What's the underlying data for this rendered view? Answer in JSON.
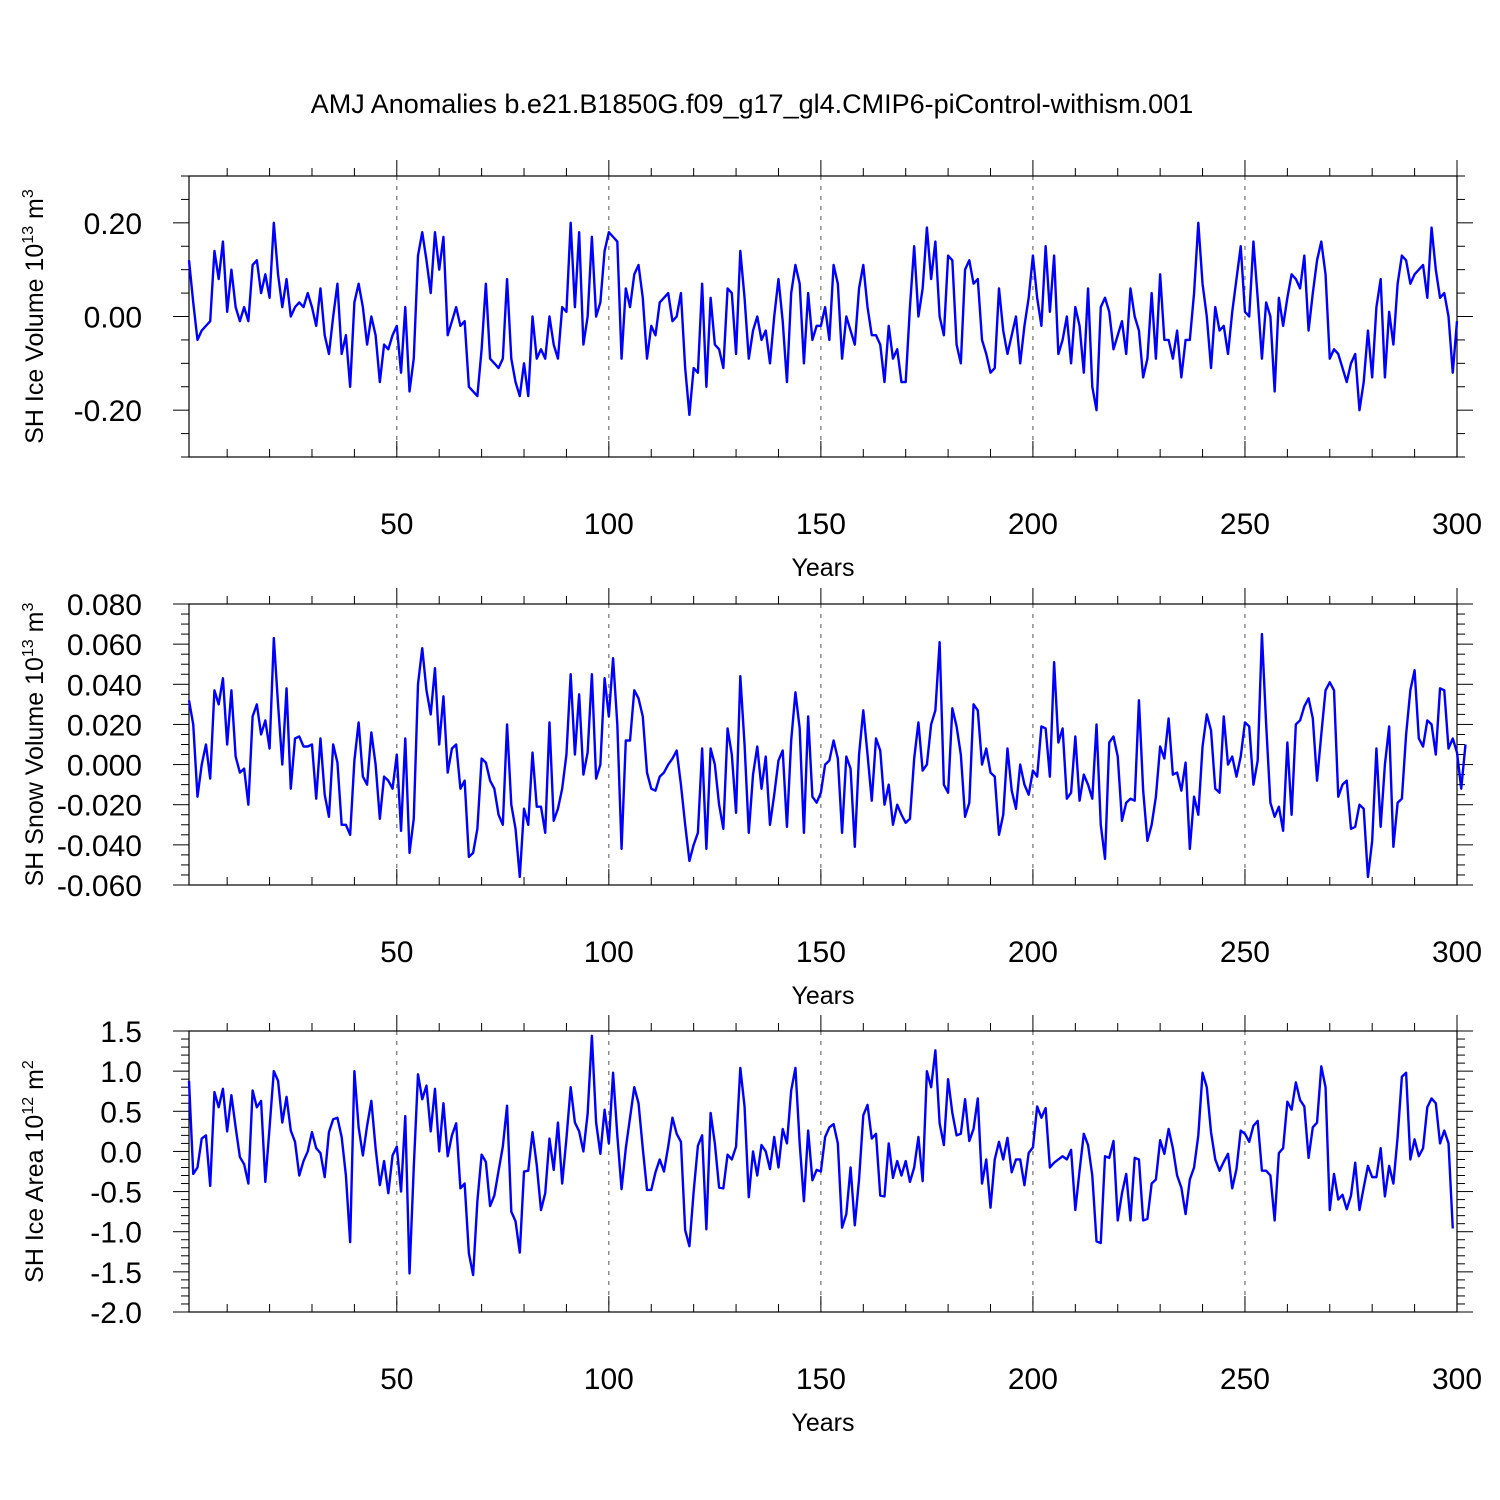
{
  "title": "AMJ Anomalies b.e21.B1850G.f09_g17_gl4.CMIP6-piControl-withism.001",
  "colors": {
    "line": "#0000ff",
    "frame": "#000000",
    "grid": "#555555"
  },
  "chart_data": [
    {
      "type": "line",
      "ylabel": "SH Ice Volume 10",
      "ylabel_exponent": "13",
      "ylabel_unit": " m",
      "ylabel_unit_exponent": "3",
      "xlabel": "Years",
      "xlim": [
        1,
        300
      ],
      "ylim": [
        -0.3,
        0.3
      ],
      "yticks": [
        -0.2,
        0.0,
        0.2
      ],
      "ytick_labels": [
        "-0.20",
        "0.00",
        "0.20"
      ],
      "yminor_step": 0.05,
      "xticks": [
        50,
        100,
        150,
        200,
        250,
        300
      ],
      "xtick_labels": [
        "50",
        "100",
        "150",
        "200",
        "250",
        "300"
      ],
      "xminor_step": 10,
      "grid_x": [
        50,
        100,
        150,
        200,
        250
      ],
      "x_start": 1,
      "series": [
        {
          "values": [
            0.12,
            0.03,
            -0.05,
            -0.03,
            -0.02,
            -0.01,
            0.14,
            0.08,
            0.16,
            0.01,
            0.1,
            0.02,
            -0.01,
            0.02,
            -0.01,
            0.11,
            0.12,
            0.05,
            0.09,
            0.04,
            0.2,
            0.09,
            0.02,
            0.08,
            0.0,
            0.02,
            0.03,
            0.02,
            0.05,
            0.02,
            -0.02,
            0.06,
            -0.04,
            -0.08,
            0.0,
            0.07,
            -0.08,
            -0.04,
            -0.15,
            0.03,
            0.07,
            0.02,
            -0.06,
            0.0,
            -0.04,
            -0.14,
            -0.06,
            -0.07,
            -0.04,
            -0.02,
            -0.12,
            0.02,
            -0.16,
            -0.09,
            0.13,
            0.18,
            0.12,
            0.05,
            0.18,
            0.1,
            0.17,
            -0.04,
            -0.01,
            0.02,
            -0.02,
            -0.01,
            -0.15,
            -0.16,
            -0.17,
            -0.07,
            0.07,
            -0.09,
            -0.1,
            -0.11,
            -0.09,
            0.08,
            -0.09,
            -0.14,
            -0.17,
            -0.1,
            -0.17,
            0.0,
            -0.09,
            -0.07,
            -0.09,
            0.0,
            -0.06,
            -0.09,
            0.02,
            0.01,
            0.2,
            0.02,
            0.18,
            -0.06,
            0.0,
            0.17,
            0.0,
            0.03,
            0.14,
            0.18,
            0.17,
            0.16,
            -0.09,
            0.06,
            0.02,
            0.09,
            0.11,
            0.04,
            -0.09,
            -0.02,
            -0.04,
            0.03,
            0.04,
            0.05,
            -0.01,
            0.0,
            0.05,
            -0.11,
            -0.21,
            -0.11,
            -0.12,
            0.07,
            -0.15,
            0.04,
            -0.06,
            -0.07,
            -0.11,
            0.06,
            0.05,
            -0.08,
            0.14,
            0.04,
            -0.09,
            -0.03,
            0.0,
            -0.05,
            -0.03,
            -0.1,
            0.0,
            0.08,
            -0.01,
            -0.14,
            0.05,
            0.11,
            0.07,
            -0.1,
            0.05,
            -0.05,
            -0.02,
            -0.02,
            0.02,
            -0.05,
            0.11,
            0.07,
            -0.09,
            0.0,
            -0.03,
            -0.06,
            0.06,
            0.11,
            0.02,
            -0.04,
            -0.04,
            -0.06,
            -0.14,
            -0.02,
            -0.09,
            -0.07,
            -0.14,
            -0.14,
            0.02,
            0.15,
            0.0,
            0.06,
            0.19,
            0.08,
            0.16,
            0.0,
            -0.04,
            0.13,
            0.12,
            -0.06,
            -0.1,
            0.1,
            0.12,
            0.07,
            0.08,
            -0.05,
            -0.08,
            -0.12,
            -0.11,
            0.06,
            -0.03,
            -0.08,
            -0.04,
            0.0,
            -0.1,
            -0.02,
            0.04,
            0.13,
            0.04,
            -0.02,
            0.15,
            0.01,
            0.13,
            -0.08,
            -0.05,
            0.0,
            -0.1,
            0.02,
            -0.02,
            -0.12,
            0.06,
            -0.15,
            -0.2,
            0.02,
            0.04,
            0.01,
            -0.07,
            -0.04,
            -0.01,
            -0.08,
            0.06,
            0.0,
            -0.03,
            -0.13,
            -0.09,
            0.05,
            -0.09,
            0.09,
            -0.05,
            -0.05,
            -0.09,
            -0.03,
            -0.13,
            -0.05,
            -0.05,
            0.05,
            0.2,
            0.07,
            0.0,
            -0.11,
            0.02,
            -0.03,
            -0.02,
            -0.08,
            0.01,
            0.08,
            0.15,
            0.01,
            0.0,
            0.16,
            0.04,
            -0.09,
            0.03,
            0.0,
            -0.16,
            0.04,
            -0.02,
            0.04,
            0.09,
            0.08,
            0.06,
            0.13,
            -0.03,
            0.05,
            0.12,
            0.16,
            0.09,
            -0.09,
            -0.07,
            -0.08,
            -0.11,
            -0.14,
            -0.1,
            -0.08,
            -0.2,
            -0.14,
            -0.03,
            -0.13,
            0.02,
            0.08,
            -0.13,
            0.01,
            -0.06,
            0.07,
            0.13,
            0.12,
            0.07,
            0.09,
            0.1,
            0.11,
            0.04,
            0.19,
            0.1,
            0.04,
            0.05,
            0.0,
            -0.12,
            -0.01
          ]
        }
      ]
    },
    {
      "type": "line",
      "ylabel": "SH Snow Volume 10",
      "ylabel_exponent": "13",
      "ylabel_unit": " m",
      "ylabel_unit_exponent": "3",
      "xlabel": "Years",
      "xlim": [
        1,
        300
      ],
      "ylim": [
        -0.06,
        0.08
      ],
      "yticks": [
        -0.06,
        -0.04,
        -0.02,
        0.0,
        0.02,
        0.04,
        0.06,
        0.08
      ],
      "ytick_labels": [
        "-0.060",
        "-0.040",
        "-0.020",
        "0.000",
        "0.020",
        "0.040",
        "0.060",
        "0.080"
      ],
      "yminor_step": 0.005,
      "xticks": [
        50,
        100,
        150,
        200,
        250,
        300
      ],
      "xtick_labels": [
        "50",
        "100",
        "150",
        "200",
        "250",
        "300"
      ],
      "xminor_step": 10,
      "grid_x": [
        50,
        100,
        150,
        200,
        250
      ],
      "x_start": 1,
      "series": [
        {
          "values": [
            0.032,
            0.02,
            -0.016,
            0.0,
            0.01,
            -0.007,
            0.037,
            0.03,
            0.043,
            0.01,
            0.037,
            0.004,
            -0.004,
            -0.002,
            -0.02,
            0.024,
            0.03,
            0.015,
            0.022,
            0.008,
            0.063,
            0.03,
            0.0,
            0.038,
            -0.012,
            0.013,
            0.014,
            0.009,
            0.009,
            0.01,
            -0.017,
            0.013,
            -0.015,
            -0.026,
            0.01,
            0.001,
            -0.03,
            -0.03,
            -0.035,
            0.002,
            0.021,
            -0.006,
            -0.01,
            0.016,
            0.0,
            -0.027,
            -0.006,
            -0.008,
            -0.012,
            0.005,
            -0.033,
            0.013,
            -0.044,
            -0.027,
            0.04,
            0.058,
            0.037,
            0.025,
            0.048,
            0.01,
            0.034,
            -0.004,
            0.008,
            0.01,
            -0.012,
            -0.008,
            -0.046,
            -0.044,
            -0.032,
            0.003,
            0.001,
            -0.008,
            -0.012,
            -0.025,
            -0.03,
            0.02,
            -0.02,
            -0.032,
            -0.056,
            -0.022,
            -0.03,
            0.006,
            -0.021,
            -0.021,
            -0.034,
            0.021,
            -0.028,
            -0.022,
            -0.012,
            0.005,
            0.045,
            0.005,
            0.035,
            -0.005,
            0.006,
            0.045,
            -0.007,
            0.0,
            0.043,
            0.024,
            0.053,
            0.02,
            -0.042,
            0.012,
            0.012,
            0.037,
            0.033,
            0.024,
            -0.004,
            -0.012,
            -0.013,
            -0.006,
            -0.004,
            0.0,
            0.003,
            0.007,
            -0.01,
            -0.03,
            -0.048,
            -0.04,
            -0.034,
            0.008,
            -0.042,
            0.008,
            0.0,
            -0.02,
            -0.032,
            0.018,
            0.005,
            -0.024,
            0.044,
            0.01,
            -0.034,
            -0.005,
            0.009,
            -0.012,
            0.004,
            -0.03,
            -0.015,
            0.002,
            0.007,
            -0.031,
            0.012,
            0.036,
            0.018,
            -0.034,
            0.024,
            -0.016,
            -0.019,
            -0.014,
            0.0,
            0.002,
            0.012,
            0.003,
            -0.034,
            0.004,
            -0.002,
            -0.041,
            0.005,
            0.027,
            0.005,
            -0.018,
            0.013,
            0.007,
            -0.02,
            -0.01,
            -0.03,
            -0.02,
            -0.025,
            -0.029,
            -0.027,
            0.003,
            0.021,
            -0.003,
            0.0,
            0.02,
            0.027,
            0.061,
            -0.01,
            -0.014,
            0.028,
            0.019,
            0.005,
            -0.026,
            -0.019,
            0.03,
            0.027,
            0.0,
            0.008,
            -0.004,
            -0.006,
            -0.035,
            -0.025,
            0.008,
            -0.013,
            -0.022,
            0.0,
            -0.01,
            -0.015,
            -0.003,
            -0.006,
            0.019,
            0.018,
            -0.006,
            0.051,
            0.011,
            0.018,
            -0.017,
            -0.014,
            0.014,
            -0.018,
            -0.005,
            -0.01,
            -0.017,
            0.02,
            -0.03,
            -0.047,
            0.011,
            0.014,
            0.004,
            -0.028,
            -0.019,
            -0.017,
            -0.018,
            0.032,
            -0.013,
            -0.038,
            -0.03,
            -0.016,
            0.009,
            0.003,
            0.023,
            -0.005,
            -0.004,
            -0.013,
            0.001,
            -0.042,
            -0.016,
            -0.025,
            0.009,
            0.025,
            0.017,
            -0.012,
            -0.014,
            0.024,
            0.0,
            0.004,
            -0.006,
            0.004,
            0.021,
            0.019,
            -0.01,
            0.002,
            0.065,
            0.02,
            -0.019,
            -0.026,
            -0.021,
            -0.033,
            0.011,
            -0.025,
            0.02,
            0.022,
            0.029,
            0.033,
            0.023,
            -0.008,
            0.015,
            0.037,
            0.041,
            0.037,
            -0.016,
            -0.01,
            -0.008,
            -0.032,
            -0.031,
            -0.02,
            -0.022,
            -0.056,
            -0.038,
            0.008,
            -0.031,
            0.0,
            0.019,
            -0.041,
            -0.019,
            -0.017,
            0.015,
            0.037,
            0.047,
            0.013,
            0.009,
            0.022,
            0.02,
            0.005,
            0.038,
            0.037,
            0.008,
            0.013,
            0.006,
            -0.012,
            0.01
          ]
        }
      ]
    },
    {
      "type": "line",
      "ylabel": "SH Ice Area 10",
      "ylabel_exponent": "12",
      "ylabel_unit": " m",
      "ylabel_unit_exponent": "2",
      "xlabel": "Years",
      "xlim": [
        1,
        300
      ],
      "ylim": [
        -2.0,
        1.5
      ],
      "yticks": [
        -2.0,
        -1.5,
        -1.0,
        -0.5,
        0.0,
        0.5,
        1.0,
        1.5
      ],
      "ytick_labels": [
        "-2.0",
        "-1.5",
        "-1.0",
        "-0.5",
        "0.0",
        "0.5",
        "1.0",
        "1.5"
      ],
      "yminor_step": 0.1,
      "xticks": [
        50,
        100,
        150,
        200,
        250,
        300
      ],
      "xtick_labels": [
        "50",
        "100",
        "150",
        "200",
        "250",
        "300"
      ],
      "xminor_step": 10,
      "grid_x": [
        50,
        100,
        150,
        200,
        250
      ],
      "x_start": 1,
      "series": [
        {
          "values": [
            0.88,
            -0.28,
            -0.2,
            0.16,
            0.2,
            -0.43,
            0.74,
            0.55,
            0.78,
            0.25,
            0.7,
            0.3,
            -0.07,
            -0.16,
            -0.4,
            0.76,
            0.55,
            0.63,
            -0.38,
            0.3,
            1.0,
            0.88,
            0.36,
            0.68,
            0.26,
            0.12,
            -0.3,
            -0.12,
            0.0,
            0.24,
            0.04,
            -0.02,
            -0.32,
            0.24,
            0.4,
            0.42,
            0.18,
            -0.3,
            -1.13,
            1.0,
            0.3,
            -0.05,
            0.32,
            0.63,
            0.04,
            -0.42,
            -0.12,
            -0.52,
            -0.05,
            0.06,
            -0.5,
            0.44,
            -1.52,
            -0.2,
            0.96,
            0.65,
            0.82,
            0.25,
            0.78,
            0.0,
            0.6,
            -0.06,
            0.2,
            0.35,
            -0.46,
            -0.4,
            -1.27,
            -1.54,
            -0.62,
            -0.04,
            -0.13,
            -0.68,
            -0.55,
            -0.24,
            0.06,
            0.57,
            -0.75,
            -0.87,
            -1.26,
            -0.25,
            -0.24,
            0.24,
            -0.17,
            -0.73,
            -0.52,
            0.16,
            -0.23,
            0.36,
            -0.4,
            0.16,
            0.8,
            0.36,
            0.25,
            0.0,
            0.47,
            1.44,
            0.36,
            -0.03,
            0.52,
            0.1,
            0.98,
            0.2,
            -0.47,
            0.04,
            0.42,
            0.8,
            0.6,
            0.04,
            -0.48,
            -0.48,
            -0.26,
            -0.1,
            -0.25,
            0.06,
            0.42,
            0.22,
            0.12,
            -0.98,
            -1.18,
            -0.5,
            0.07,
            0.2,
            -0.97,
            0.48,
            0.1,
            -0.45,
            -0.46,
            -0.04,
            -0.1,
            0.06,
            1.04,
            0.56,
            -0.57,
            0.0,
            -0.3,
            0.08,
            0.0,
            -0.22,
            0.18,
            -0.2,
            0.28,
            0.1,
            0.76,
            1.04,
            0.1,
            -0.62,
            0.26,
            -0.36,
            -0.23,
            -0.25,
            0.18,
            0.3,
            0.34,
            0.1,
            -0.95,
            -0.78,
            -0.2,
            -0.92,
            -0.35,
            0.45,
            0.58,
            0.16,
            0.22,
            -0.55,
            -0.56,
            0.1,
            -0.33,
            -0.12,
            -0.3,
            -0.12,
            -0.38,
            -0.2,
            0.18,
            -0.37,
            1.0,
            0.8,
            1.26,
            0.35,
            0.08,
            0.9,
            0.48,
            0.2,
            0.22,
            0.65,
            0.13,
            0.28,
            0.66,
            -0.4,
            -0.1,
            -0.7,
            -0.1,
            0.12,
            -0.1,
            0.17,
            -0.26,
            -0.1,
            -0.1,
            -0.42,
            -0.02,
            0.05,
            0.56,
            0.42,
            0.54,
            -0.2,
            -0.14,
            -0.1,
            -0.06,
            -0.1,
            0.02,
            -0.73,
            -0.24,
            0.22,
            0.08,
            -0.3,
            -1.12,
            -1.14,
            -0.06,
            -0.08,
            0.13,
            -0.86,
            -0.52,
            -0.28,
            -0.86,
            -0.08,
            -0.1,
            -0.86,
            -0.84,
            -0.4,
            -0.35,
            0.14,
            -0.03,
            0.28,
            0.04,
            -0.3,
            -0.45,
            -0.78,
            -0.35,
            -0.2,
            0.2,
            0.98,
            0.8,
            0.24,
            -0.1,
            -0.24,
            -0.13,
            -0.03,
            -0.46,
            -0.22,
            0.26,
            0.22,
            0.12,
            0.32,
            0.38,
            -0.24,
            -0.24,
            -0.3,
            -0.86,
            -0.02,
            0.04,
            0.62,
            0.52,
            0.86,
            0.64,
            0.56,
            -0.08,
            0.3,
            0.36,
            1.06,
            0.8,
            -0.73,
            -0.28,
            -0.6,
            -0.54,
            -0.72,
            -0.55,
            -0.14,
            -0.73,
            -0.45,
            -0.18,
            -0.32,
            -0.32,
            0.04,
            -0.56,
            -0.18,
            -0.4,
            0.18,
            0.93,
            0.98,
            -0.1,
            0.15,
            -0.06,
            0.04,
            0.55,
            0.66,
            0.6,
            0.1,
            0.26,
            0.1,
            -0.96
          ]
        }
      ]
    }
  ]
}
